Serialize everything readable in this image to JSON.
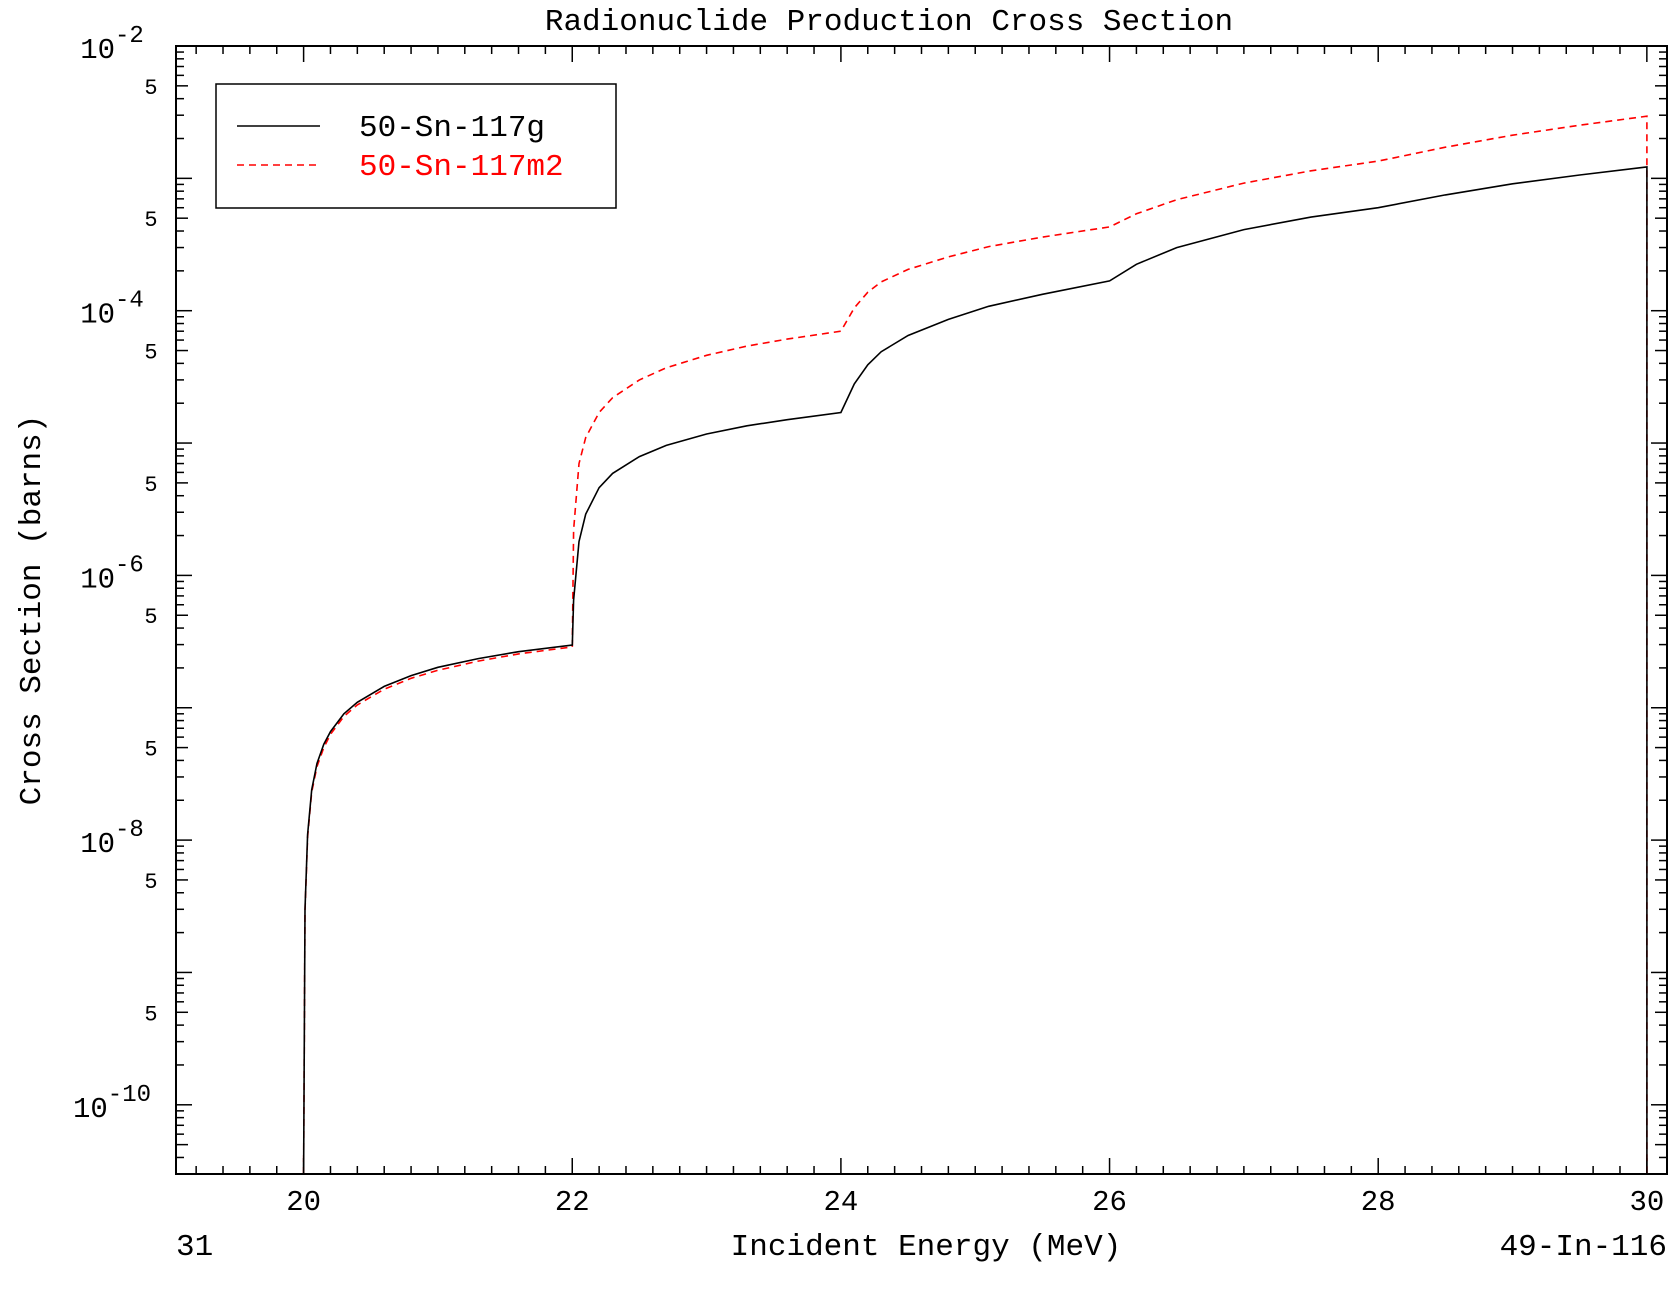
{
  "chart_data": {
    "type": "line",
    "title": "Radionuclide Production Cross Section",
    "xlabel": "Incident Energy (MeV)",
    "ylabel": "Cross Section (barns)",
    "footer_left": "31",
    "footer_right": "49-In-116",
    "xlim": [
      19.05,
      30.15
    ],
    "ylim": [
      3e-11,
      0.01
    ],
    "yscale": "log",
    "x_ticks": [
      "20",
      "22",
      "24",
      "26",
      "28",
      "30"
    ],
    "y_major_ticks": [
      {
        "value": 0.01,
        "base": "10",
        "exp": "-2"
      },
      {
        "value": 0.0001,
        "base": "10",
        "exp": "-4"
      },
      {
        "value": 1e-06,
        "base": "10",
        "exp": "-6"
      },
      {
        "value": 1e-08,
        "base": "10",
        "exp": "-8"
      },
      {
        "value": 1e-10,
        "base": "10",
        "exp": "-10"
      }
    ],
    "y_minor_label": "5",
    "y_minor_values": [
      0.005,
      0.0005,
      5e-05,
      5e-06,
      5e-07,
      5e-08,
      5e-09,
      5e-10
    ],
    "legend_position": "top-left",
    "series": [
      {
        "name": "50-Sn-117g",
        "color": "#000000",
        "dash": "solid",
        "x": [
          20.0,
          20.01,
          20.03,
          20.06,
          20.1,
          20.15,
          20.2,
          20.3,
          20.4,
          20.6,
          20.8,
          21.0,
          21.3,
          21.6,
          22.0,
          22.01,
          22.05,
          22.1,
          22.2,
          22.3,
          22.5,
          22.7,
          23.0,
          23.3,
          23.6,
          24.0,
          24.1,
          24.2,
          24.3,
          24.5,
          24.8,
          25.1,
          25.5,
          26.0,
          26.2,
          26.5,
          27.0,
          27.5,
          28.0,
          28.5,
          29.0,
          29.5,
          30.0,
          30.0
        ],
        "y": [
          3e-11,
          3e-09,
          1.1e-08,
          2.4e-08,
          3.8e-08,
          5.3e-08,
          6.6e-08,
          9e-08,
          1.1e-07,
          1.45e-07,
          1.75e-07,
          2.02e-07,
          2.35e-07,
          2.65e-07,
          2.98e-07,
          6.5e-07,
          1.8e-06,
          2.9e-06,
          4.6e-06,
          5.9e-06,
          7.9e-06,
          9.6e-06,
          1.17e-05,
          1.35e-05,
          1.5e-05,
          1.7e-05,
          2.8e-05,
          3.9e-05,
          4.9e-05,
          6.5e-05,
          8.6e-05,
          0.000108,
          0.000133,
          0.000168,
          0.000224,
          0.0003,
          0.00041,
          0.00051,
          0.0006,
          0.00075,
          0.00091,
          0.00106,
          0.00122,
          3e-11
        ]
      },
      {
        "name": "50-Sn-117m2",
        "color": "#ff0000",
        "dash": "dashed",
        "x": [
          20.0,
          20.01,
          20.03,
          20.06,
          20.1,
          20.15,
          20.2,
          20.3,
          20.4,
          20.6,
          20.8,
          21.0,
          21.3,
          21.6,
          22.0,
          22.01,
          22.05,
          22.1,
          22.2,
          22.3,
          22.5,
          22.7,
          23.0,
          23.3,
          23.6,
          24.0,
          24.1,
          24.2,
          24.3,
          24.5,
          24.8,
          25.1,
          25.5,
          26.0,
          26.2,
          26.5,
          27.0,
          27.5,
          28.0,
          28.5,
          29.0,
          29.5,
          30.0,
          30.0
        ],
        "y": [
          3e-11,
          2.9e-09,
          1.05e-08,
          2.3e-08,
          3.6e-08,
          5e-08,
          6.3e-08,
          8.6e-08,
          1.05e-07,
          1.38e-07,
          1.67e-07,
          1.92e-07,
          2.25e-07,
          2.55e-07,
          2.88e-07,
          2.2e-06,
          7e-06,
          1.1e-05,
          1.7e-05,
          2.2e-05,
          3e-05,
          3.7e-05,
          4.6e-05,
          5.4e-05,
          6.1e-05,
          7e-05,
          0.000105,
          0.000138,
          0.000165,
          0.000205,
          0.000255,
          0.000305,
          0.00036,
          0.00043,
          0.00054,
          0.00069,
          0.00092,
          0.00114,
          0.00135,
          0.00172,
          0.00212,
          0.00252,
          0.00295,
          3e-11
        ]
      }
    ]
  }
}
